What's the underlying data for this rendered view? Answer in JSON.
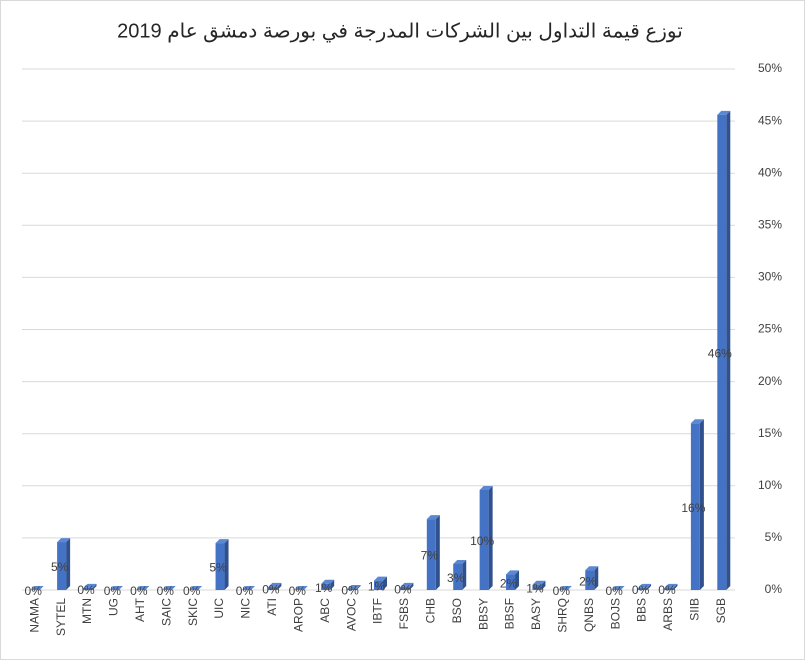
{
  "chart_data": {
    "type": "bar",
    "title": "توزع قيمة التداول بين الشركات المدرجة في بورصة دمشق عام 2019",
    "categories": [
      "NAMA",
      "SYTEL",
      "MTN",
      "UG",
      "AHT",
      "SAIC",
      "SKIC",
      "UIC",
      "NIC",
      "ATI",
      "AROP",
      "ABC",
      "AVOC",
      "IBTF",
      "FSBS",
      "CHB",
      "BSO",
      "BBSY",
      "BBSF",
      "BASY",
      "SHRQ",
      "QNBS",
      "BOJS",
      "BBS",
      "ARBS",
      "SIIB",
      "SGB"
    ],
    "values": [
      0,
      4.6,
      0.2,
      0,
      0,
      0,
      0,
      4.5,
      0,
      0.3,
      0,
      0.6,
      0.1,
      0.9,
      0.3,
      6.8,
      2.5,
      9.6,
      1.5,
      0.5,
      0,
      1.9,
      0,
      0.2,
      0.2,
      16.0,
      45.6
    ],
    "value_labels": [
      "0%",
      "5%",
      "0%",
      "0%",
      "0%",
      "0%",
      "0%",
      "5%",
      "0%",
      "0%",
      "0%",
      "1%",
      "0%",
      "1%",
      "0%",
      "7%",
      "3%",
      "10%",
      "2%",
      "1%",
      "0%",
      "2%",
      "0%",
      "0%",
      "0%",
      "16%",
      "46%"
    ],
    "color": "#4472c4",
    "ylim": [
      0,
      50
    ],
    "yticks": [
      {
        "value": 0,
        "label": "0%"
      },
      {
        "value": 5,
        "label": "5%"
      },
      {
        "value": 10,
        "label": "10%"
      },
      {
        "value": 15,
        "label": "15%"
      },
      {
        "value": 20,
        "label": "20%"
      },
      {
        "value": 25,
        "label": "25%"
      },
      {
        "value": 30,
        "label": "30%"
      },
      {
        "value": 35,
        "label": "35%"
      },
      {
        "value": 40,
        "label": "40%"
      },
      {
        "value": 45,
        "label": "45%"
      },
      {
        "value": 50,
        "label": "50%"
      }
    ],
    "grid": true
  }
}
